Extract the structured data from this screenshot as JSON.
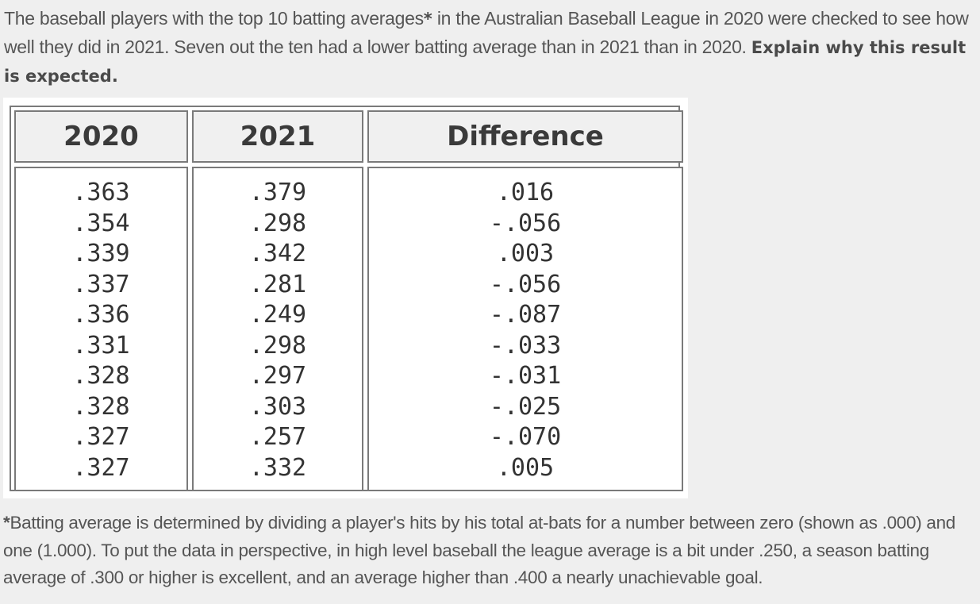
{
  "intro": {
    "text": "The baseball players with the top 10 batting averages",
    "star": "*",
    "text2": " in the Australian Baseball League in 2020 were checked to see how well they did in 2021.  Seven out the ten had a lower batting average than in 2021 than in 2020.  ",
    "emphasis": "Explain why this result is expected."
  },
  "table": {
    "headers": [
      "2020",
      "2021",
      "Difference"
    ],
    "col_2020": [
      ".363",
      ".354",
      ".339",
      ".337",
      ".336",
      ".331",
      ".328",
      ".328",
      ".327",
      ".327"
    ],
    "col_2021": [
      ".379",
      ".298",
      ".342",
      ".281",
      ".249",
      ".298",
      ".297",
      ".303",
      ".257",
      ".332"
    ],
    "col_diff": [
      ".016",
      "-.056",
      ".003",
      "-.056",
      "-.087",
      "-.033",
      "-.031",
      "-.025",
      "-.070",
      ".005"
    ]
  },
  "footnote": {
    "star": "*",
    "text": "Batting average is determined by dividing a player's hits by his total at-bats for a number between zero (shown as .000) and one (1.000).  To put the data in perspective, in high level baseball the league average is a bit under .250, a season batting average of .300 or higher is excellent, and an average higher than .400 a nearly unachievable goal."
  }
}
